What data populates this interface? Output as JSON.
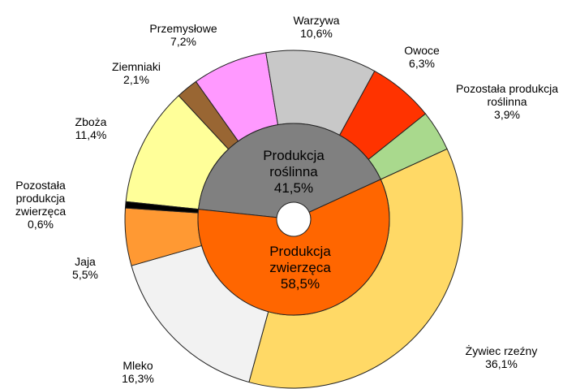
{
  "chart_data": {
    "type": "sunburst",
    "inner": {
      "categories": [
        "Produkcja roślinna",
        "Produkcja zwierzęca"
      ],
      "values": [
        41.5,
        58.5
      ],
      "value_labels": [
        "41,5%",
        "58,5%"
      ],
      "colors": [
        "#808080",
        "#ff6600"
      ]
    },
    "outer": {
      "categories": [
        "Zboża",
        "Ziemniaki",
        "Przemysłowe",
        "Warzywa",
        "Owoce",
        "Pozostała produkcja roślinna",
        "Żywiec rzeźny",
        "Mleko",
        "Jaja",
        "Pozostała produkcja zwierzęca"
      ],
      "values": [
        11.4,
        2.1,
        7.2,
        10.6,
        6.3,
        3.9,
        36.1,
        16.3,
        5.5,
        0.6
      ],
      "value_labels": [
        "11,4%",
        "2,1%",
        "7,2%",
        "10,6%",
        "6,3%",
        "3,9%",
        "36,1%",
        "16,3%",
        "5,5%",
        "0,6%"
      ],
      "colors": [
        "#ffff99",
        "#996633",
        "#ff99ff",
        "#c8c8c8",
        "#ff3300",
        "#a9d98d",
        "#ffd966",
        "#f2f2f2",
        "#ff9933",
        "#000000"
      ]
    }
  }
}
